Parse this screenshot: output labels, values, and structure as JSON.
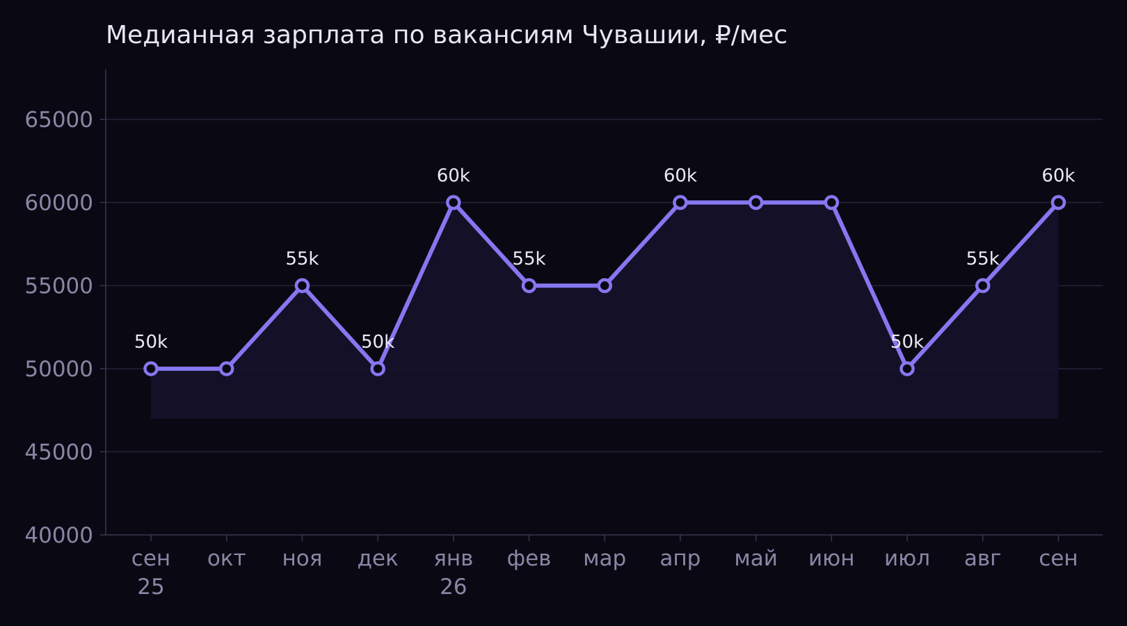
{
  "chart_data": {
    "type": "line",
    "title": "Медианная зарплата по вакансиям Чувашии, ₽/мес",
    "xlabel": "",
    "ylabel": "",
    "categories": [
      [
        "сен",
        "25"
      ],
      [
        "окт"
      ],
      [
        "ноя"
      ],
      [
        "дек"
      ],
      [
        "янв",
        "26"
      ],
      [
        "фев"
      ],
      [
        "мар"
      ],
      [
        "апр"
      ],
      [
        "май"
      ],
      [
        "июн"
      ],
      [
        "июл"
      ],
      [
        "авг"
      ],
      [
        "сен"
      ]
    ],
    "series": [
      {
        "values": [
          50000,
          50000,
          55000,
          50000,
          60000,
          55000,
          55000,
          60000,
          60000,
          60000,
          50000,
          55000,
          60000
        ],
        "color": "#8677f0"
      }
    ],
    "data_labels": [
      "50k",
      null,
      "55k",
      "50k",
      "60k",
      "55k",
      null,
      "60k",
      null,
      null,
      "50k",
      "55k",
      "60k"
    ],
    "area_baseline": 47000,
    "ylim": [
      40000,
      68000
    ],
    "yticks": [
      "40000",
      "45000",
      "50000",
      "55000",
      "60000",
      "65000"
    ],
    "grid": true,
    "colors": {
      "background": "#0a0913",
      "line": "#8677f0",
      "marker_fill": "#0a0913",
      "area_fill": "#15122b",
      "grid": "#26233b",
      "axis": "#3a3750",
      "tick_text": "#8a86a6",
      "label_text": "#ebe9f5",
      "title_text": "#e8e6f2"
    }
  }
}
